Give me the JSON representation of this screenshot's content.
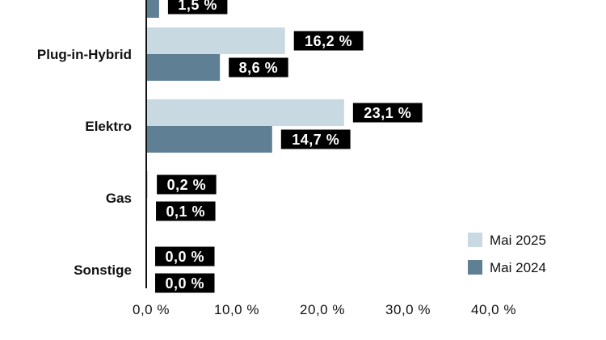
{
  "chart_data": {
    "type": "bar",
    "orientation": "horizontal",
    "categories": [
      "",
      "Plug-in-Hybrid",
      "Elektro",
      "Gas",
      "Sonstige"
    ],
    "series": [
      {
        "name": "Mai 2025",
        "values": [
          null,
          16.2,
          23.1,
          0.2,
          0.0
        ],
        "labels": [
          "",
          "16,2 %",
          "23,1 %",
          "0,2 %",
          "0,0 %"
        ],
        "color": "#c9d9e1"
      },
      {
        "name": "Mai 2024",
        "values": [
          1.5,
          8.6,
          14.7,
          0.1,
          0.0
        ],
        "labels": [
          "1,5 %",
          "8,6 %",
          "14,7 %",
          "0,1 %",
          "0,0 %"
        ],
        "color": "#5f7f95"
      }
    ],
    "xlim": [
      0,
      40
    ],
    "xticks": [
      0,
      10,
      20,
      30,
      40
    ],
    "xtick_labels": [
      "0,0 %",
      "10,0 %",
      "20,0 %",
      "30,0 %",
      "40,0 %"
    ],
    "legend_position": "bottom-right",
    "label_box_color": "#000000",
    "axis_color": "#111111"
  }
}
